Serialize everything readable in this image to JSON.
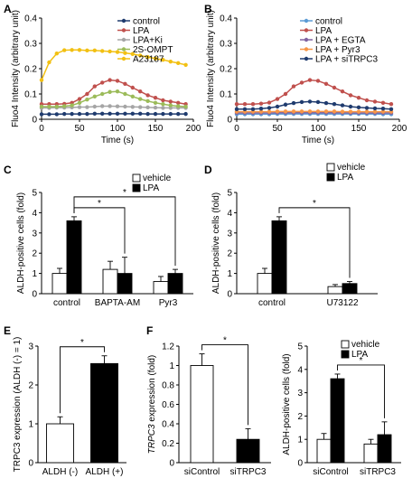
{
  "panels": {
    "A": "A",
    "B": "B",
    "C": "C",
    "D": "D",
    "E": "E",
    "F": "F"
  },
  "chart_data": [
    {
      "id": "A",
      "type": "line",
      "xlabel": "Time (s)",
      "ylabel": "Fluo4 Intensity (arbitrary unit)",
      "xlim": [
        0,
        200
      ],
      "ylim": [
        0,
        0.4
      ],
      "xticks": [
        0,
        50,
        100,
        150,
        200
      ],
      "yticks": [
        0,
        0.1,
        0.2,
        0.3,
        0.4
      ],
      "x": [
        0,
        10,
        20,
        30,
        40,
        50,
        60,
        70,
        80,
        90,
        100,
        110,
        120,
        130,
        140,
        150,
        160,
        170,
        180,
        190
      ],
      "series": [
        {
          "name": "control",
          "color": "#1f3b6e",
          "values": [
            0.02,
            0.02,
            0.02,
            0.021,
            0.021,
            0.021,
            0.021,
            0.022,
            0.022,
            0.022,
            0.022,
            0.022,
            0.022,
            0.022,
            0.021,
            0.021,
            0.021,
            0.021,
            0.021,
            0.021
          ]
        },
        {
          "name": "LPA",
          "color": "#c0504d",
          "values": [
            0.06,
            0.06,
            0.06,
            0.061,
            0.065,
            0.08,
            0.1,
            0.13,
            0.145,
            0.155,
            0.152,
            0.14,
            0.125,
            0.11,
            0.095,
            0.085,
            0.075,
            0.07,
            0.065,
            0.06
          ]
        },
        {
          "name": "LPA+Ki",
          "color": "#a5a5a5",
          "values": [
            0.045,
            0.045,
            0.046,
            0.046,
            0.047,
            0.048,
            0.048,
            0.05,
            0.052,
            0.052,
            0.051,
            0.05,
            0.049,
            0.048,
            0.047,
            0.046,
            0.045,
            0.045,
            0.045,
            0.045
          ]
        },
        {
          "name": "2S-OMPT",
          "color": "#9bbb59",
          "values": [
            0.05,
            0.05,
            0.05,
            0.052,
            0.055,
            0.065,
            0.078,
            0.09,
            0.1,
            0.108,
            0.11,
            0.1,
            0.09,
            0.08,
            0.072,
            0.065,
            0.06,
            0.055,
            0.052,
            0.05
          ]
        },
        {
          "name": "A23187",
          "color": "#f2c012",
          "values": [
            0.155,
            0.225,
            0.26,
            0.273,
            0.274,
            0.274,
            0.272,
            0.272,
            0.27,
            0.268,
            0.266,
            0.262,
            0.258,
            0.252,
            0.246,
            0.24,
            0.235,
            0.228,
            0.222,
            0.215
          ]
        }
      ]
    },
    {
      "id": "B",
      "type": "line",
      "xlabel": "Time (s)",
      "ylabel": "Fluo4 Intensity (arbitrary unit)",
      "xlim": [
        0,
        200
      ],
      "ylim": [
        0,
        0.4
      ],
      "xticks": [
        0,
        50,
        100,
        150,
        200
      ],
      "yticks": [
        0,
        0.1,
        0.2,
        0.3,
        0.4
      ],
      "x": [
        0,
        10,
        20,
        30,
        40,
        50,
        60,
        70,
        80,
        90,
        100,
        110,
        120,
        130,
        140,
        150,
        160,
        170,
        180,
        190
      ],
      "series": [
        {
          "name": "control",
          "color": "#5b9bd5",
          "values": [
            0.02,
            0.02,
            0.02,
            0.02,
            0.02,
            0.021,
            0.021,
            0.021,
            0.021,
            0.021,
            0.021,
            0.021,
            0.021,
            0.021,
            0.021,
            0.021,
            0.021,
            0.021,
            0.02,
            0.02
          ]
        },
        {
          "name": "LPA",
          "color": "#c0504d",
          "values": [
            0.06,
            0.06,
            0.06,
            0.062,
            0.066,
            0.08,
            0.1,
            0.13,
            0.145,
            0.155,
            0.152,
            0.14,
            0.125,
            0.11,
            0.095,
            0.085,
            0.075,
            0.07,
            0.065,
            0.06
          ]
        },
        {
          "name": "LPA + EGTA",
          "color": "#8064a2",
          "values": [
            0.025,
            0.025,
            0.025,
            0.025,
            0.025,
            0.026,
            0.026,
            0.026,
            0.026,
            0.026,
            0.026,
            0.026,
            0.026,
            0.026,
            0.025,
            0.025,
            0.025,
            0.025,
            0.025,
            0.025
          ]
        },
        {
          "name": "LPA + Pyr3",
          "color": "#f79646",
          "values": [
            0.03,
            0.03,
            0.03,
            0.03,
            0.03,
            0.031,
            0.031,
            0.031,
            0.031,
            0.031,
            0.031,
            0.031,
            0.031,
            0.03,
            0.03,
            0.03,
            0.03,
            0.03,
            0.03,
            0.03
          ]
        },
        {
          "name": "LPA + siTRPC3",
          "color": "#1f3b6e",
          "values": [
            0.04,
            0.04,
            0.04,
            0.042,
            0.045,
            0.05,
            0.058,
            0.064,
            0.068,
            0.07,
            0.068,
            0.064,
            0.06,
            0.055,
            0.05,
            0.047,
            0.045,
            0.043,
            0.042,
            0.04
          ]
        }
      ]
    },
    {
      "id": "C",
      "type": "bar",
      "ylabel": "ALDH-positive cells (fold)",
      "ylim": [
        0,
        5
      ],
      "yticks": [
        0,
        1,
        2,
        3,
        4,
        5
      ],
      "categories": [
        "control",
        "BAPTA-AM",
        "Pyr3"
      ],
      "series": [
        {
          "name": "vehicle",
          "fill": "#ffffff",
          "values": [
            1.0,
            1.2,
            0.6
          ],
          "errors": [
            0.25,
            0.4,
            0.25
          ]
        },
        {
          "name": "LPA",
          "fill": "#000000",
          "values": [
            3.6,
            1.0,
            1.0
          ],
          "errors": [
            0.2,
            0.8,
            0.2
          ]
        }
      ],
      "legend": "top-right",
      "significance": [
        {
          "from": [
            0,
            1
          ],
          "to": [
            1,
            1
          ],
          "label": "*"
        },
        {
          "from": [
            0,
            1
          ],
          "to": [
            2,
            1
          ],
          "label": "*"
        }
      ]
    },
    {
      "id": "D",
      "type": "bar",
      "ylabel": "ALDH-positive cells (fold)",
      "ylim": [
        0,
        5
      ],
      "yticks": [
        0,
        1,
        2,
        3,
        4,
        5
      ],
      "categories": [
        "control",
        "U73122"
      ],
      "series": [
        {
          "name": "vehicle",
          "fill": "#ffffff",
          "values": [
            1.0,
            0.35
          ],
          "errors": [
            0.25,
            0.1
          ]
        },
        {
          "name": "LPA",
          "fill": "#000000",
          "values": [
            3.6,
            0.5
          ],
          "errors": [
            0.2,
            0.1
          ]
        }
      ],
      "legend": "top-right",
      "significance": [
        {
          "from": [
            0,
            1
          ],
          "to": [
            1,
            1
          ],
          "label": "*"
        }
      ]
    },
    {
      "id": "E",
      "type": "bar",
      "ylabel": "TRPC3 expression (ALDH (-) = 1)",
      "ylim": [
        0,
        3
      ],
      "yticks": [
        0,
        1,
        2,
        3
      ],
      "categories": [
        "ALDH (-)",
        "ALDH (+)"
      ],
      "series": [
        {
          "fill_per_bar": [
            "#ffffff",
            "#000000"
          ],
          "values": [
            1.0,
            2.55
          ],
          "errors": [
            0.18,
            0.2
          ]
        }
      ],
      "significance": [
        {
          "from": 0,
          "to": 1,
          "label": "*"
        }
      ]
    },
    {
      "id": "F1",
      "type": "bar",
      "ylabel_italic": "TRPC3",
      "ylabel_rest": " expression (fold)",
      "ylim": [
        0,
        1.2
      ],
      "yticks": [
        0,
        0.2,
        0.4,
        0.6,
        0.8,
        1,
        1.2
      ],
      "ytick_labels": [
        "0",
        "0.2",
        "0.4",
        "0.6",
        "0.8",
        "1",
        "1.2"
      ],
      "categories": [
        "siControl",
        "siTRPC3"
      ],
      "series": [
        {
          "fill_per_bar": [
            "#ffffff",
            "#000000"
          ],
          "values": [
            1.0,
            0.24
          ],
          "errors": [
            0.12,
            0.11
          ]
        }
      ],
      "significance": [
        {
          "from": 0,
          "to": 1,
          "label": "*"
        }
      ]
    },
    {
      "id": "F2",
      "type": "bar",
      "ylabel": "ALDH-positive cells (fold)",
      "ylim": [
        0,
        5
      ],
      "yticks": [
        0,
        1,
        2,
        3,
        4,
        5
      ],
      "categories": [
        "siControl",
        "siTRPC3"
      ],
      "series": [
        {
          "name": "vehicle",
          "fill": "#ffffff",
          "values": [
            1.0,
            0.8
          ],
          "errors": [
            0.25,
            0.2
          ]
        },
        {
          "name": "LPA",
          "fill": "#000000",
          "values": [
            3.6,
            1.2
          ],
          "errors": [
            0.2,
            0.55
          ]
        }
      ],
      "legend": "top-right",
      "significance": [
        {
          "from": [
            0,
            1
          ],
          "to": [
            1,
            1
          ],
          "label": "*"
        }
      ]
    }
  ]
}
